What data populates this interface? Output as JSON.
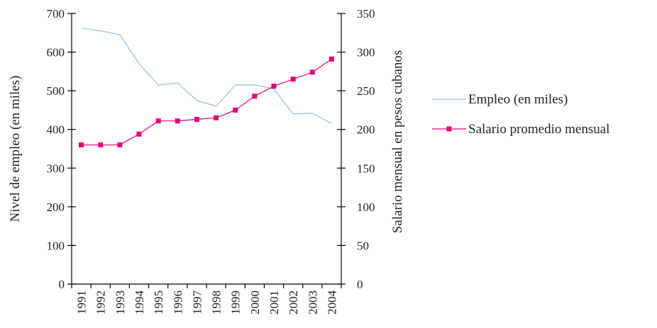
{
  "chart_data": {
    "type": "line",
    "categories": [
      "1991",
      "1992",
      "1993",
      "1994",
      "1995",
      "1996",
      "1997",
      "1998",
      "1999",
      "2000",
      "2001",
      "2002",
      "2003",
      "2004"
    ],
    "series": [
      {
        "name": "Empleo (en miles)",
        "axis": "left",
        "color": "#9cc3e4",
        "marker": "none",
        "values": [
          662,
          655,
          645,
          570,
          515,
          520,
          475,
          460,
          515,
          515,
          505,
          440,
          442,
          415
        ]
      },
      {
        "name": "Salario promedio mensual",
        "axis": "right",
        "color": "#e4007c",
        "marker": "square",
        "values": [
          180,
          180,
          180,
          194,
          211,
          211,
          213,
          215,
          225,
          243,
          256,
          265,
          274,
          291
        ]
      }
    ],
    "ylabel_left": "Nivel de empleo (en miles)",
    "ylabel_right": "Salario mensual en pesos cubanos",
    "ylim_left": [
      0,
      700
    ],
    "ylim_right": [
      0,
      350
    ],
    "yticks_left": [
      0,
      100,
      200,
      300,
      400,
      500,
      600,
      700
    ],
    "yticks_right": [
      0,
      50,
      100,
      150,
      200,
      250,
      300,
      350
    ],
    "grid": false,
    "legend_position": "right"
  }
}
